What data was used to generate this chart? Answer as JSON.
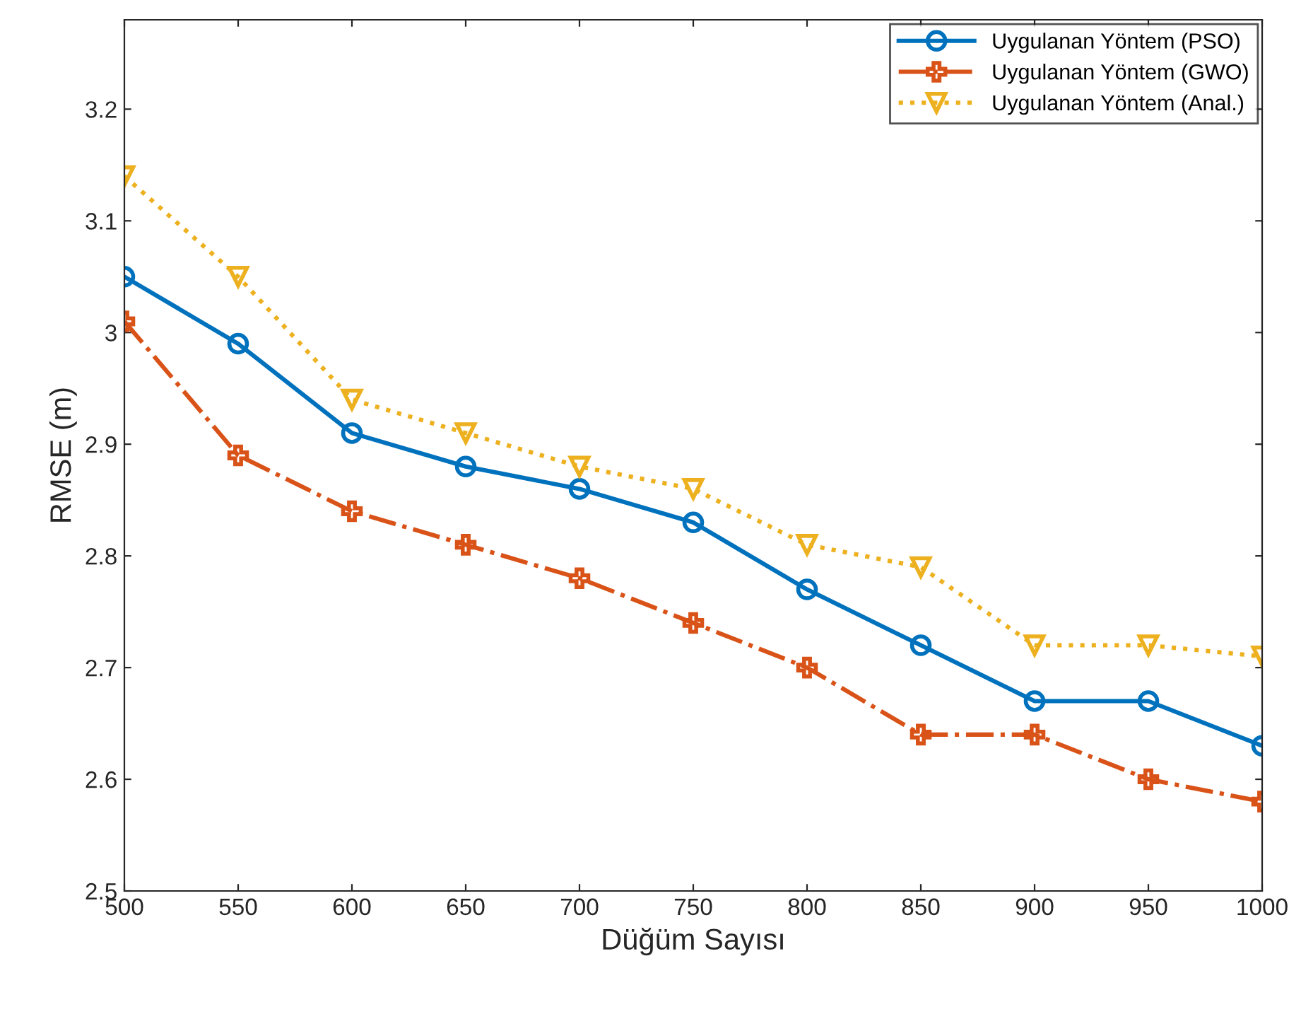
{
  "chart_data": {
    "type": "line",
    "xlabel": "Düğüm Sayısı",
    "ylabel": "RMSE (m)",
    "x": [
      500,
      550,
      600,
      650,
      700,
      750,
      800,
      850,
      900,
      950,
      1000
    ],
    "xlim": [
      500,
      1000
    ],
    "xticks": [
      500,
      550,
      600,
      650,
      700,
      750,
      800,
      850,
      900,
      950,
      1000
    ],
    "ylim": [
      2.5,
      3.28
    ],
    "yticks": [
      2.5,
      {
        "value": 2.6,
        "label": "2.6"
      },
      {
        "value": 2.7,
        "label": "2.7"
      },
      {
        "value": 2.8,
        "label": "2.8"
      },
      {
        "value": 2.9,
        "label": "2.9"
      },
      3,
      {
        "value": 3.1,
        "label": "3.1"
      },
      {
        "value": 3.2,
        "label": "3.2"
      }
    ],
    "grid": false,
    "legend": "top right",
    "series": [
      {
        "name": "Uygulanan Yöntem (PSO)",
        "color": "#0072bd",
        "marker": "circle",
        "line_style": "solid",
        "values": [
          3.05,
          2.99,
          2.91,
          2.88,
          2.86,
          2.83,
          2.77,
          2.72,
          2.67,
          2.67,
          2.63
        ]
      },
      {
        "name": "Uygulanan Yöntem (GWO)",
        "color": "#d95319",
        "marker": "cross",
        "line_style": "dashdot",
        "values": [
          3.01,
          2.89,
          2.84,
          2.81,
          2.78,
          2.74,
          2.7,
          2.64,
          2.64,
          2.6,
          2.58
        ]
      },
      {
        "name": "Uygulanan Yöntem (Anal.)",
        "color": "#edb120",
        "marker": "triangle_down",
        "line_style": "dotted",
        "values": [
          3.14,
          3.05,
          2.94,
          2.91,
          2.88,
          2.86,
          2.81,
          2.79,
          2.72,
          2.72,
          2.71
        ]
      }
    ]
  }
}
